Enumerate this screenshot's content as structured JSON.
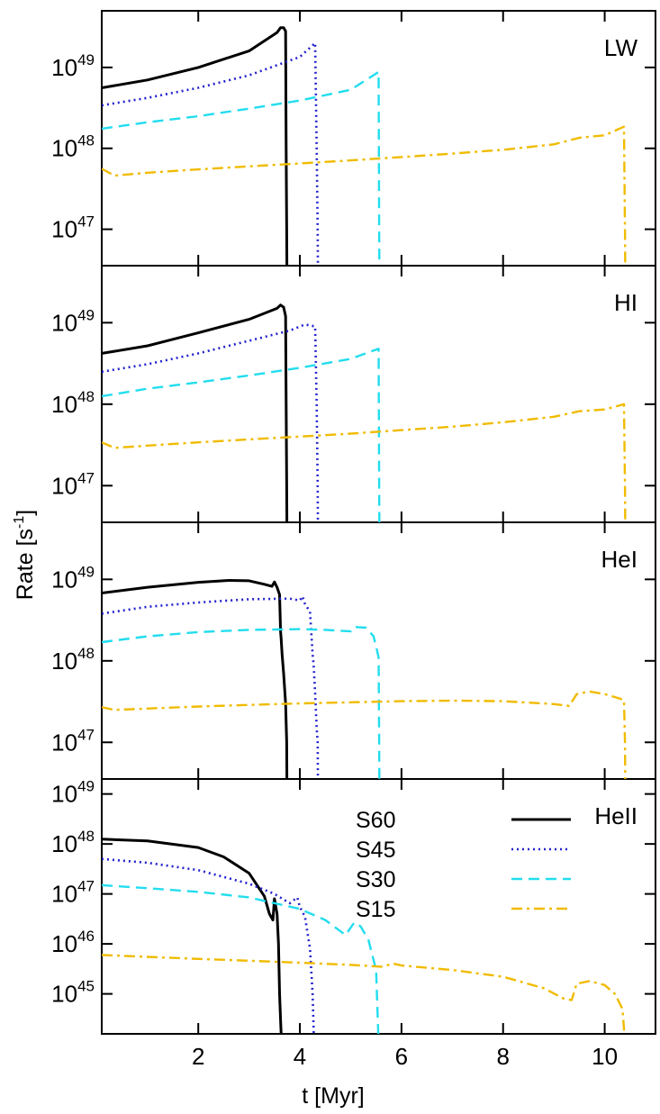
{
  "chart_data": {
    "type": "line",
    "xlabel": "t [Myr]",
    "ylabel": "Rate [s",
    "ylabel_sup": "-1",
    "ylabel_close": "]",
    "y_scale": "log",
    "xlim": [
      0.1,
      11.0
    ],
    "x_ticks": [
      2,
      4,
      6,
      8,
      10
    ],
    "x_tick_labels": [
      "2",
      "4",
      "6",
      "8",
      "10"
    ],
    "legend": {
      "placement": "top-left of bottom panel",
      "entries": [
        "S60",
        "S45",
        "S30",
        "S15"
      ]
    },
    "series_styles": {
      "S60": {
        "color": "#000000",
        "dash": "solid"
      },
      "S45": {
        "color": "#2222cc",
        "dash": "dotted"
      },
      "S30": {
        "color": "#22ddee",
        "dash": "dashed"
      },
      "S15": {
        "color": "#f0bb00",
        "dash": "dashdot"
      }
    },
    "panels": [
      {
        "label": "LW",
        "ylim_log": [
          46.55,
          49.7
        ],
        "y_ticks_log": [
          47,
          48,
          49
        ],
        "series": [
          {
            "name": "S60",
            "x": [
              0.1,
              1.0,
              2.0,
              3.0,
              3.55,
              3.62,
              3.68,
              3.72,
              3.73,
              3.74,
              3.75
            ],
            "y": [
              5.6e+48,
              7e+48,
              1e+49,
              1.6e+49,
              2.7e+49,
              3.1e+49,
              3.1e+49,
              2.8e+49,
              1e+48,
              1e+47,
              1e+46
            ]
          },
          {
            "name": "S45",
            "x": [
              0.1,
              1.0,
              2.0,
              3.0,
              4.0,
              4.3,
              4.33,
              4.35,
              4.36
            ],
            "y": [
              3.4e+48,
              4.2e+48,
              5.6e+48,
              8e+48,
              1.35e+49,
              2e+49,
              1e+48,
              1e+47,
              1e+46
            ]
          },
          {
            "name": "S30",
            "x": [
              0.1,
              1.0,
              2.0,
              3.0,
              4.0,
              5.0,
              5.55,
              5.56,
              5.57
            ],
            "y": [
              1.75e+48,
              2.1e+48,
              2.5e+48,
              3.1e+48,
              3.9e+48,
              5.3e+48,
              8.8e+48,
              1e+47,
              1e+46
            ]
          },
          {
            "name": "S15",
            "x": [
              0.1,
              0.35,
              1.0,
              2.0,
              3.0,
              4.0,
              5.0,
              6.0,
              7.0,
              8.0,
              9.0,
              9.5,
              10.0,
              10.38,
              10.4,
              10.41
            ],
            "y": [
              5.6e+47,
              4.6e+47,
              5e+47,
              5.5e+47,
              6e+47,
              6.5e+47,
              7.1e+47,
              7.8e+47,
              8.6e+47,
              9.6e+47,
              1.12e+48,
              1.35e+48,
              1.45e+48,
              1.85e+48,
              1e+47,
              1e+46
            ]
          }
        ]
      },
      {
        "label": "HI",
        "ylim_log": [
          46.55,
          49.7
        ],
        "y_ticks_log": [
          47,
          48,
          49
        ],
        "series": [
          {
            "name": "S60",
            "x": [
              0.1,
              1.0,
              2.0,
              3.0,
              3.55,
              3.62,
              3.68,
              3.72,
              3.73,
              3.74,
              3.75
            ],
            "y": [
              4.2e+48,
              5.2e+48,
              7.5e+48,
              1.1e+49,
              1.5e+49,
              1.65e+49,
              1.55e+49,
              1.2e+49,
              1e+48,
              1e+47,
              1e+46
            ]
          },
          {
            "name": "S45",
            "x": [
              0.1,
              1.0,
              2.0,
              3.0,
              3.8,
              4.1,
              4.3,
              4.33,
              4.35,
              4.36
            ],
            "y": [
              2.5e+48,
              3.1e+48,
              4.2e+48,
              6e+48,
              8e+48,
              9.5e+48,
              9e+48,
              1e+48,
              1e+47,
              1e+46
            ]
          },
          {
            "name": "S30",
            "x": [
              0.1,
              1.0,
              2.0,
              3.0,
              4.0,
              5.0,
              5.55,
              5.56,
              5.57
            ],
            "y": [
              1.25e+48,
              1.55e+48,
              1.85e+48,
              2.25e+48,
              2.8e+48,
              3.6e+48,
              4.8e+48,
              1e+47,
              1e+46
            ]
          },
          {
            "name": "S15",
            "x": [
              0.1,
              0.35,
              1.0,
              2.0,
              3.0,
              4.0,
              5.0,
              6.0,
              7.0,
              8.0,
              9.0,
              9.5,
              10.0,
              10.38,
              10.4,
              10.41
            ],
            "y": [
              3.4e+47,
              2.9e+47,
              3.1e+47,
              3.4e+47,
              3.7e+47,
              4e+47,
              4.35e+47,
              4.8e+47,
              5.3e+47,
              6e+47,
              7e+47,
              8.2e+47,
              8.6e+47,
              1e+48,
              1e+47,
              1e+46
            ]
          }
        ]
      },
      {
        "label": "HeI",
        "ylim_log": [
          46.55,
          49.7
        ],
        "y_ticks_log": [
          47,
          48,
          49
        ],
        "series": [
          {
            "name": "S60",
            "x": [
              0.1,
              1.0,
              2.0,
              2.6,
              3.0,
              3.3,
              3.45,
              3.5,
              3.55,
              3.6,
              3.62,
              3.63,
              3.65,
              3.68,
              3.72,
              3.74,
              3.75
            ],
            "y": [
              6.8e+48,
              8e+48,
              9.2e+48,
              9.7e+48,
              9.6e+48,
              8.7e+48,
              8.2e+48,
              9.3e+48,
              8e+48,
              6.5e+48,
              2.3e+48,
              1.9e+48,
              1.2e+48,
              7e+47,
              3e+47,
              1e+47,
              1e+46
            ]
          },
          {
            "name": "S45",
            "x": [
              0.1,
              1.0,
              2.0,
              3.0,
              3.8,
              4.0,
              4.05,
              4.1,
              4.2,
              4.25,
              4.27,
              4.3,
              4.33,
              4.35,
              4.36
            ],
            "y": [
              3.8e+48,
              4.6e+48,
              5.2e+48,
              5.7e+48,
              5.8e+48,
              5.5e+48,
              6.2e+48,
              5e+48,
              4e+48,
              1.2e+48,
              9e+47,
              4e+47,
              1.5e+47,
              1e+47,
              1e+46
            ]
          },
          {
            "name": "S30",
            "x": [
              0.1,
              1.0,
              2.0,
              3.0,
              4.0,
              4.5,
              5.0,
              5.05,
              5.1,
              5.3,
              5.45,
              5.5,
              5.55,
              5.56,
              5.57
            ],
            "y": [
              1.7e+48,
              2e+48,
              2.25e+48,
              2.4e+48,
              2.45e+48,
              2.4e+48,
              2.3e+48,
              2.55e+48,
              2.6e+48,
              2.55e+48,
              2e+48,
              1.5e+48,
              1.1e+48,
              1e+47,
              1e+46
            ]
          },
          {
            "name": "S15",
            "x": [
              0.1,
              0.35,
              2.0,
              4.0,
              6.0,
              7.0,
              8.0,
              9.0,
              9.3,
              9.45,
              9.7,
              10.0,
              10.2,
              10.38,
              10.4,
              10.41
            ],
            "y": [
              2.7e+47,
              2.5e+47,
              2.75e+47,
              3e+47,
              3.2e+47,
              3.25e+47,
              3.2e+47,
              2.95e+47,
              2.8e+47,
              3.9e+47,
              4.2e+47,
              3.9e+47,
              3.6e+47,
              3.3e+47,
              1e+47,
              1e+46
            ]
          }
        ]
      },
      {
        "label": "HeII",
        "ylim_log": [
          44.2,
          49.3
        ],
        "y_ticks_log": [
          45,
          46,
          47,
          48,
          49
        ],
        "series": [
          {
            "name": "S60",
            "x": [
              0.1,
              1.0,
              2.0,
              2.5,
              3.0,
              3.3,
              3.4,
              3.47,
              3.5,
              3.55,
              3.58,
              3.6,
              3.62,
              3.64,
              3.65
            ],
            "y": [
              1.25e+48,
              1.15e+48,
              8.5e+47,
              5.5e+47,
              2.6e+47,
              9e+46,
              4e+46,
              3e+46,
              8e+46,
              4e+46,
              1e+46,
              1e+45,
              3e+44,
              1e+44,
              1e+43
            ]
          },
          {
            "name": "S45",
            "x": [
              0.1,
              1.0,
              2.0,
              3.0,
              3.5,
              3.8,
              3.95,
              4.0,
              4.1,
              4.2,
              4.25,
              4.28,
              4.3
            ],
            "y": [
              5e+47,
              4.2e+47,
              3e+47,
              1.6e+47,
              1e+47,
              6.5e+46,
              8.5e+46,
              5.5e+46,
              3.5e+46,
              8e+45,
              1e+45,
              1e+44,
              1e+43
            ]
          },
          {
            "name": "S30",
            "x": [
              0.1,
              1.0,
              2.0,
              3.0,
              4.0,
              4.5,
              4.9,
              5.05,
              5.1,
              5.2,
              5.35,
              5.5,
              5.55,
              5.56
            ],
            "y": [
              1.5e+47,
              1.3e+47,
              1.1e+47,
              8.5e+46,
              5e+46,
              3e+46,
              1.5e+46,
              2.5e+46,
              2.7e+46,
              2.2e+46,
              1.2e+46,
              3e+45,
              1e+44,
              1e+43
            ]
          },
          {
            "name": "S15",
            "x": [
              0.1,
              1.0,
              2.0,
              3.0,
              4.0,
              5.0,
              5.6,
              5.85,
              6.0,
              7.0,
              8.0,
              8.8,
              9.2,
              9.35,
              9.45,
              9.7,
              10.0,
              10.2,
              10.35,
              10.38,
              10.4
            ],
            "y": [
              6e+45,
              5.5e+45,
              5e+45,
              4.6e+45,
              4.2e+45,
              3.8e+45,
              3.5e+45,
              4e+45,
              3.7e+45,
              3e+45,
              2.2e+45,
              1.3e+45,
              8e+44,
              7.5e+44,
              1.6e+45,
              1.8e+45,
              1.5e+45,
              1e+45,
              5e+44,
              2e+44,
              1e+43
            ]
          }
        ]
      }
    ]
  }
}
